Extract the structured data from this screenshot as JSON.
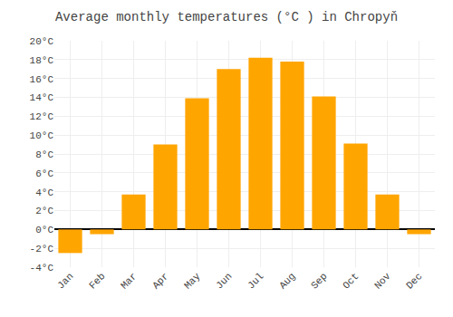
{
  "chart_data": {
    "type": "bar",
    "title": "Average monthly temperatures (°C ) in Chropyň",
    "categories": [
      "Jan",
      "Feb",
      "Mar",
      "Apr",
      "May",
      "Jun",
      "Jul",
      "Aug",
      "Sep",
      "Oct",
      "Nov",
      "Dec"
    ],
    "values": [
      -2.5,
      -0.5,
      3.7,
      9.0,
      13.9,
      17.0,
      18.2,
      17.8,
      14.1,
      9.1,
      3.7,
      -0.5
    ],
    "color": "#FFA500",
    "ylim": [
      -4,
      20
    ],
    "yticks": [
      {
        "value": -4,
        "label": "-4°C"
      },
      {
        "value": -2,
        "label": "-2°C"
      },
      {
        "value": 0,
        "label": "0°C"
      },
      {
        "value": 2,
        "label": "2°C"
      },
      {
        "value": 4,
        "label": "4°C"
      },
      {
        "value": 6,
        "label": "6°C"
      },
      {
        "value": 8,
        "label": "8°C"
      },
      {
        "value": 10,
        "label": "10°C"
      },
      {
        "value": 12,
        "label": "12°C"
      },
      {
        "value": 14,
        "label": "14°C"
      },
      {
        "value": 16,
        "label": "16°C"
      },
      {
        "value": 18,
        "label": "18°C"
      },
      {
        "value": 20,
        "label": "20°C"
      }
    ],
    "grid": true
  }
}
